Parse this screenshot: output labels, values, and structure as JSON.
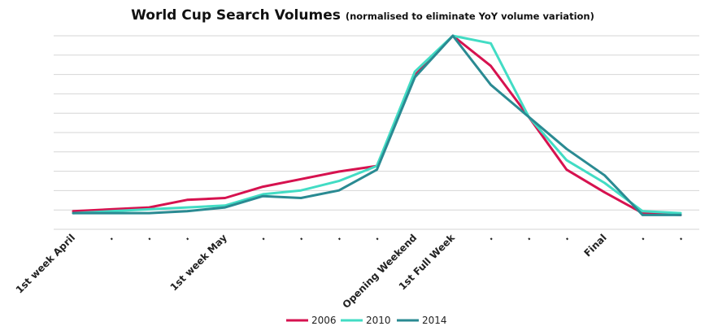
{
  "chart_data": {
    "type": "line",
    "title": "World Cup Search Volumes",
    "subtitle": "(normalised to eliminate YoY volume variation)",
    "xlabel": "",
    "ylabel": "",
    "categories": [
      "1st week April",
      ".",
      ".",
      ".",
      "1st week May",
      ".",
      ".",
      ".",
      ".",
      "Opening Weekend",
      "1st Full Week",
      ".",
      ".",
      ".",
      "Final",
      ".",
      "."
    ],
    "ylim": [
      0,
      100
    ],
    "grid": true,
    "y_tick_labels_shown": false,
    "legend_position": "bottom",
    "series": [
      {
        "name": "2006",
        "color": "#d6124f",
        "values": [
          7,
          8,
          9,
          13,
          14,
          20,
          24,
          28,
          31,
          79,
          100,
          84,
          57,
          29,
          17,
          6,
          5
        ]
      },
      {
        "name": "2010",
        "color": "#42dcc4",
        "values": [
          6,
          7,
          8,
          9,
          10,
          16,
          18,
          23,
          31,
          81,
          100,
          96,
          57,
          34,
          22,
          7,
          6
        ]
      },
      {
        "name": "2014",
        "color": "#2a8a92",
        "values": [
          6,
          6,
          6,
          7,
          9,
          15,
          14,
          18,
          29,
          78,
          100,
          74,
          57,
          40,
          26,
          5,
          5
        ]
      }
    ]
  }
}
